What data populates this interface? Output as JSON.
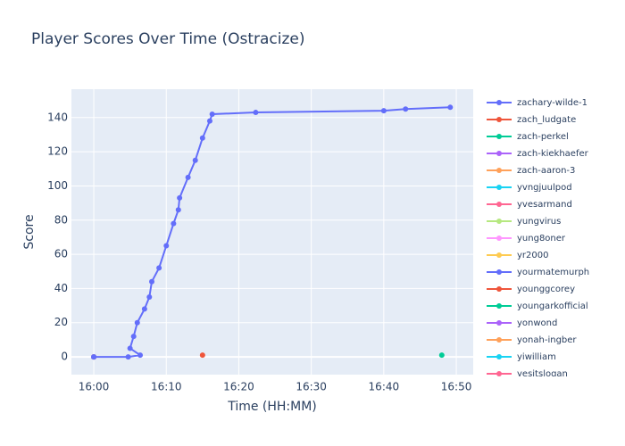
{
  "chart_data": {
    "type": "line",
    "title": "Player Scores Over Time (Ostracize)",
    "x_label": "Time (HH:MM)",
    "y_label": "Score",
    "xlim": [
      "15:56:55",
      "16:52:20"
    ],
    "xticks": [
      "16:00",
      "16:10",
      "16:20",
      "16:30",
      "16:40",
      "16:50"
    ],
    "ylim": [
      -10.4,
      156.6
    ],
    "yticks": [
      0,
      20,
      40,
      60,
      80,
      100,
      120,
      140
    ],
    "grid": true,
    "legend": "right",
    "series": [
      {
        "name": "zachary-wilde-1",
        "color": "#636efa",
        "x": [
          "16:00:00",
          "16:04:45",
          "16:06:24",
          "16:05:00",
          "16:05:30",
          "16:06:00",
          "16:07:00",
          "16:07:40",
          "16:08:00",
          "16:09:00",
          "16:10:00",
          "16:11:00",
          "16:11:40",
          "16:11:50",
          "16:13:00",
          "16:14:00",
          "16:15:00",
          "16:16:00",
          "16:16:20",
          "16:22:20",
          "16:40:00",
          "16:43:00",
          "16:49:10"
        ],
        "values": [
          0,
          0,
          1,
          5,
          12,
          20,
          28,
          35,
          44,
          52,
          65,
          78,
          86,
          93,
          105,
          115,
          128,
          138,
          142,
          143,
          144,
          145,
          146
        ]
      },
      {
        "name": "zach_ludgate",
        "color": "#EF553B",
        "x": [
          "16:15:00"
        ],
        "values": [
          1
        ]
      },
      {
        "name": "zach-perkel",
        "color": "#00cc96",
        "x": [
          "16:48:00"
        ],
        "values": [
          1
        ]
      },
      {
        "name": "zach-kiekhaefer",
        "color": "#ab63fa",
        "x": [
          "16:00:00"
        ],
        "values": [
          0
        ]
      },
      {
        "name": "zach-aaron-3",
        "color": "#FFA15A",
        "x": [
          "16:00:00"
        ],
        "values": [
          0
        ]
      },
      {
        "name": "yvngjuulpod",
        "color": "#19d3f3",
        "x": [
          "16:00:00"
        ],
        "values": [
          0
        ]
      },
      {
        "name": "yvesarmand",
        "color": "#FF6692",
        "x": [
          "16:00:00"
        ],
        "values": [
          0
        ]
      },
      {
        "name": "yungvirus",
        "color": "#B6E880",
        "x": [
          "16:00:00"
        ],
        "values": [
          0
        ]
      },
      {
        "name": "yung8oner",
        "color": "#FF97FF",
        "x": [
          "16:00:00"
        ],
        "values": [
          0
        ]
      },
      {
        "name": "yr2000",
        "color": "#FECB52",
        "x": [
          "16:00:00"
        ],
        "values": [
          0
        ]
      },
      {
        "name": "yourmatemurph",
        "color": "#636efa",
        "x": [
          "16:00:00"
        ],
        "values": [
          0
        ]
      },
      {
        "name": "younggcorey",
        "color": "#EF553B",
        "x": [
          "16:00:00"
        ],
        "values": [
          0
        ]
      },
      {
        "name": "youngarkofficial",
        "color": "#00cc96",
        "x": [
          "16:00:00"
        ],
        "values": [
          0
        ]
      },
      {
        "name": "yonwond",
        "color": "#ab63fa",
        "x": [
          "16:00:00"
        ],
        "values": [
          0
        ]
      },
      {
        "name": "yonah-ingber",
        "color": "#FFA15A",
        "x": [
          "16:00:00"
        ],
        "values": [
          0
        ]
      },
      {
        "name": "yiwilliam",
        "color": "#19d3f3",
        "x": [
          "16:00:00"
        ],
        "values": [
          0
        ]
      },
      {
        "name": "yesitslogan",
        "color": "#FF6692",
        "x": [
          "16:00:00"
        ],
        "values": [
          0
        ]
      }
    ]
  }
}
